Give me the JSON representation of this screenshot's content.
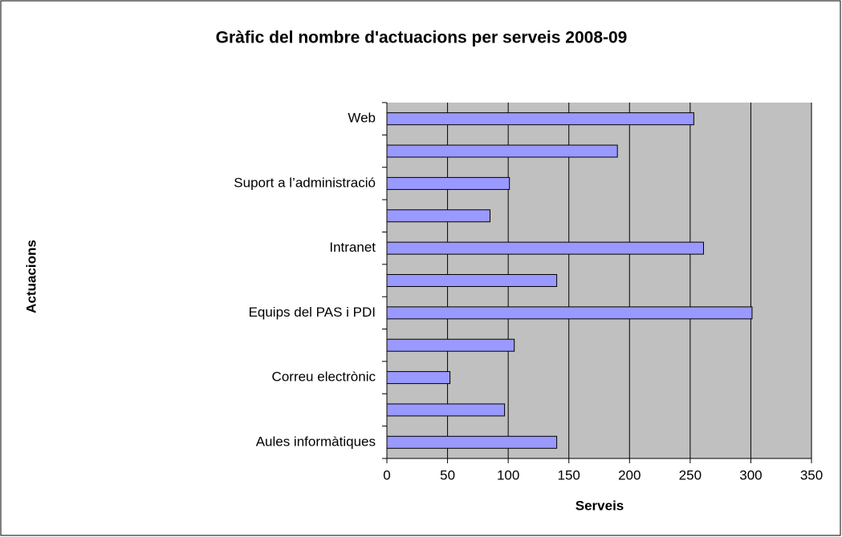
{
  "chart_data": {
    "type": "barh",
    "title": "Gràfic del nombre d'actuacions per serveis 2008-09",
    "xlabel": "Serveis",
    "ylabel": "Actuacions",
    "categories": [
      "Web",
      null,
      "Suport a l’administració",
      null,
      "Intranet",
      null,
      "Equips del PAS i PDI",
      null,
      "Correu electrònic",
      null,
      "Aules informàtiques"
    ],
    "values": [
      253,
      190,
      101,
      85,
      261,
      140,
      301,
      105,
      52,
      97,
      140
    ],
    "color": "#9999ff",
    "xlim": [
      0,
      350
    ],
    "xticks": [
      0,
      50,
      100,
      150,
      200,
      250,
      300,
      350
    ],
    "grid": true
  }
}
